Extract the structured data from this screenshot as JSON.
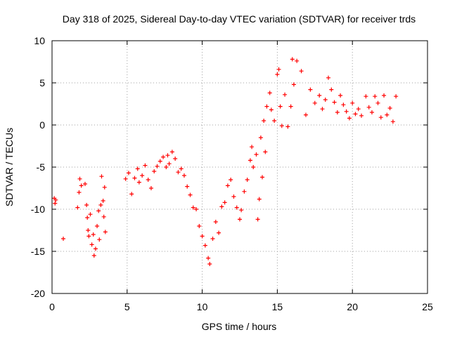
{
  "chart_data": {
    "type": "scatter",
    "title": "Day 318 of 2025, Sidereal Day-to-day VTEC variation (SDTVAR) for receiver trds",
    "xlabel": "GPS time / hours",
    "ylabel": "SDTVAR / TECUs",
    "xlim": [
      0,
      25
    ],
    "ylim": [
      -20,
      10
    ],
    "xticks": [
      0,
      5,
      10,
      15,
      20,
      25
    ],
    "yticks": [
      -20,
      -15,
      -10,
      -5,
      0,
      5,
      10
    ],
    "grid": true,
    "marker": "+",
    "series": [
      {
        "name": "SDTVAR",
        "color": "#ff0000",
        "points": [
          [
            0.15,
            -8.7
          ],
          [
            0.2,
            -9.3
          ],
          [
            0.25,
            -8.9
          ],
          [
            0.75,
            -13.5
          ],
          [
            1.7,
            -9.8
          ],
          [
            1.8,
            -8.0
          ],
          [
            1.85,
            -6.4
          ],
          [
            1.95,
            -7.2
          ],
          [
            2.2,
            -7.0
          ],
          [
            2.3,
            -9.5
          ],
          [
            2.35,
            -11.0
          ],
          [
            2.4,
            -12.5
          ],
          [
            2.45,
            -13.2
          ],
          [
            2.55,
            -10.6
          ],
          [
            2.65,
            -14.2
          ],
          [
            2.75,
            -13.0
          ],
          [
            2.8,
            -15.5
          ],
          [
            2.9,
            -14.7
          ],
          [
            3.0,
            -12.0
          ],
          [
            3.1,
            -10.2
          ],
          [
            3.15,
            -13.6
          ],
          [
            3.25,
            -9.5
          ],
          [
            3.3,
            -6.1
          ],
          [
            3.4,
            -9.0
          ],
          [
            3.45,
            -10.9
          ],
          [
            3.5,
            -7.4
          ],
          [
            3.55,
            -12.7
          ],
          [
            4.9,
            -6.4
          ],
          [
            5.1,
            -5.7
          ],
          [
            5.3,
            -8.2
          ],
          [
            5.5,
            -6.3
          ],
          [
            5.7,
            -5.2
          ],
          [
            5.8,
            -6.8
          ],
          [
            6.0,
            -6.0
          ],
          [
            6.2,
            -4.8
          ],
          [
            6.4,
            -6.5
          ],
          [
            6.6,
            -7.5
          ],
          [
            6.8,
            -5.5
          ],
          [
            7.0,
            -4.9
          ],
          [
            7.2,
            -4.3
          ],
          [
            7.4,
            -3.8
          ],
          [
            7.6,
            -5.0
          ],
          [
            7.7,
            -3.6
          ],
          [
            7.8,
            -4.6
          ],
          [
            8.0,
            -3.2
          ],
          [
            8.2,
            -4.0
          ],
          [
            8.4,
            -5.6
          ],
          [
            8.6,
            -5.2
          ],
          [
            8.8,
            -6.0
          ],
          [
            9.0,
            -7.3
          ],
          [
            9.2,
            -8.3
          ],
          [
            9.4,
            -9.8
          ],
          [
            9.6,
            -10.0
          ],
          [
            9.8,
            -12.0
          ],
          [
            10.0,
            -13.2
          ],
          [
            10.2,
            -14.3
          ],
          [
            10.4,
            -15.8
          ],
          [
            10.5,
            -16.5
          ],
          [
            10.7,
            -13.5
          ],
          [
            10.9,
            -11.5
          ],
          [
            11.1,
            -12.8
          ],
          [
            11.3,
            -9.7
          ],
          [
            11.5,
            -9.2
          ],
          [
            11.7,
            -7.2
          ],
          [
            11.9,
            -6.5
          ],
          [
            12.1,
            -8.5
          ],
          [
            12.3,
            -9.8
          ],
          [
            12.5,
            -11.2
          ],
          [
            12.6,
            -10.1
          ],
          [
            12.8,
            -7.9
          ],
          [
            13.0,
            -6.5
          ],
          [
            13.2,
            -4.2
          ],
          [
            13.3,
            -2.6
          ],
          [
            13.4,
            -5.0
          ],
          [
            13.6,
            -3.5
          ],
          [
            13.7,
            -11.2
          ],
          [
            13.8,
            -8.8
          ],
          [
            13.9,
            -1.5
          ],
          [
            14.0,
            -6.2
          ],
          [
            14.1,
            0.5
          ],
          [
            14.2,
            -3.2
          ],
          [
            14.3,
            2.2
          ],
          [
            14.5,
            3.8
          ],
          [
            14.6,
            1.8
          ],
          [
            14.8,
            0.5
          ],
          [
            15.0,
            6.0
          ],
          [
            15.1,
            6.6
          ],
          [
            15.2,
            2.2
          ],
          [
            15.3,
            -0.1
          ],
          [
            15.5,
            3.6
          ],
          [
            15.7,
            -0.2
          ],
          [
            15.9,
            2.2
          ],
          [
            16.0,
            7.8
          ],
          [
            16.1,
            4.8
          ],
          [
            16.3,
            7.6
          ],
          [
            16.6,
            6.4
          ],
          [
            16.9,
            1.2
          ],
          [
            17.2,
            4.2
          ],
          [
            17.5,
            2.6
          ],
          [
            17.8,
            3.5
          ],
          [
            18.0,
            1.9
          ],
          [
            18.2,
            3.0
          ],
          [
            18.4,
            5.6
          ],
          [
            18.6,
            4.2
          ],
          [
            18.8,
            2.7
          ],
          [
            19.0,
            1.5
          ],
          [
            19.2,
            3.5
          ],
          [
            19.4,
            2.4
          ],
          [
            19.6,
            1.6
          ],
          [
            19.8,
            0.8
          ],
          [
            20.0,
            2.6
          ],
          [
            20.2,
            1.3
          ],
          [
            20.4,
            1.9
          ],
          [
            20.6,
            1.1
          ],
          [
            20.9,
            3.4
          ],
          [
            21.1,
            2.1
          ],
          [
            21.3,
            1.5
          ],
          [
            21.5,
            3.4
          ],
          [
            21.7,
            2.6
          ],
          [
            21.9,
            0.9
          ],
          [
            22.1,
            3.5
          ],
          [
            22.3,
            1.2
          ],
          [
            22.5,
            2.0
          ],
          [
            22.7,
            0.4
          ],
          [
            22.9,
            3.4
          ]
        ]
      }
    ]
  }
}
